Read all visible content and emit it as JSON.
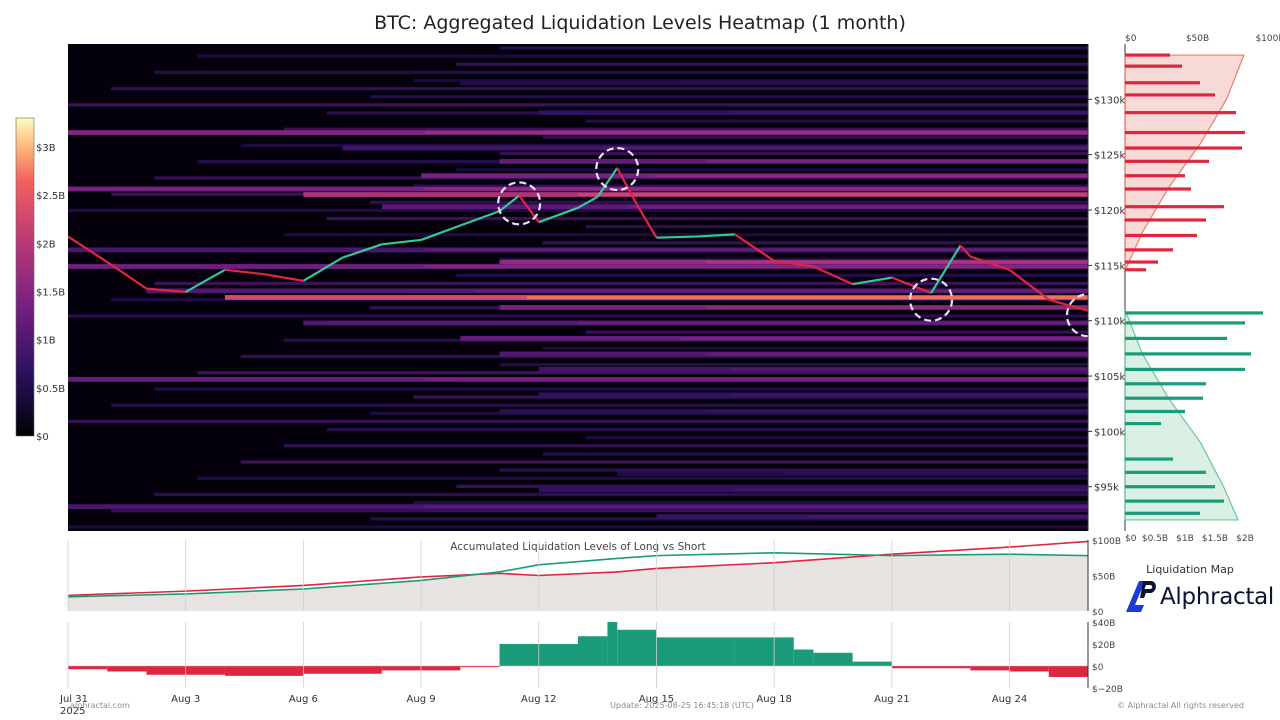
{
  "title": "BTC: Aggregated Liquidation Levels Heatmap (1 month)",
  "colors": {
    "long": "#1a9c7a",
    "short": "#e0253f",
    "cum_bg": "#e6e3e0",
    "heatmap_low": "#000004",
    "heatmap_high": "#fcfdbf"
  },
  "chart_data": [
    {
      "type": "heatmap",
      "name": "liquidation-heatmap",
      "x_dates": [
        "Jul 31\n2025",
        "Aug 3",
        "Aug 6",
        "Aug 9",
        "Aug 12",
        "Aug 15",
        "Aug 18",
        "Aug 21",
        "Aug 24"
      ],
      "x_tick_labels": [
        "Jul 31",
        "Aug 3",
        "Aug 6",
        "Aug 9",
        "Aug 12",
        "Aug 15",
        "Aug 18",
        "Aug 21",
        "Aug 24"
      ],
      "x_year_label": "2025",
      "xlim": [
        "2025-07-31",
        "2025-08-26"
      ],
      "y_ticks": [
        95000,
        100000,
        105000,
        110000,
        115000,
        120000,
        125000,
        130000
      ],
      "y_tick_labels": [
        "$95k",
        "$100k",
        "$105k",
        "$110k",
        "$115k",
        "$120k",
        "$125k",
        "$130k"
      ],
      "ylim": [
        91000,
        135000
      ],
      "colorbar": {
        "ticks": [
          "$0",
          "$0.5B",
          "$1B",
          "$1.5B",
          "$2B",
          "$2.5B",
          "$3B"
        ],
        "values": [
          0,
          0.5,
          1,
          1.5,
          2,
          2.5,
          3
        ],
        "max": 3.3
      },
      "price_series": [
        {
          "date": "2025-07-31",
          "price": 117600
        },
        {
          "date": "2025-08-01",
          "price": 115300
        },
        {
          "date": "2025-08-02",
          "price": 112900
        },
        {
          "date": "2025-08-03",
          "price": 112600
        },
        {
          "date": "2025-08-04",
          "price": 114600
        },
        {
          "date": "2025-08-05",
          "price": 114200
        },
        {
          "date": "2025-08-06",
          "price": 113600
        },
        {
          "date": "2025-08-07",
          "price": 115700
        },
        {
          "date": "2025-08-08",
          "price": 116900
        },
        {
          "date": "2025-08-09",
          "price": 117300
        },
        {
          "date": "2025-08-10",
          "price": 118600
        },
        {
          "date": "2025-08-11",
          "price": 119900
        },
        {
          "date": "2025-08-11T12",
          "price": 121300
        },
        {
          "date": "2025-08-12",
          "price": 118900
        },
        {
          "date": "2025-08-13",
          "price": 120200
        },
        {
          "date": "2025-08-13T12",
          "price": 121200
        },
        {
          "date": "2025-08-14",
          "price": 123800
        },
        {
          "date": "2025-08-14T12",
          "price": 120500
        },
        {
          "date": "2025-08-15",
          "price": 117500
        },
        {
          "date": "2025-08-16",
          "price": 117600
        },
        {
          "date": "2025-08-17",
          "price": 117800
        },
        {
          "date": "2025-08-18",
          "price": 115400
        },
        {
          "date": "2025-08-19",
          "price": 114900
        },
        {
          "date": "2025-08-20",
          "price": 113300
        },
        {
          "date": "2025-08-21",
          "price": 113900
        },
        {
          "date": "2025-08-22",
          "price": 112500
        },
        {
          "date": "2025-08-22T18",
          "price": 116800
        },
        {
          "date": "2025-08-23",
          "price": 115800
        },
        {
          "date": "2025-08-24",
          "price": 114600
        },
        {
          "date": "2025-08-25",
          "price": 111900
        },
        {
          "date": "2025-08-26",
          "price": 110900
        }
      ],
      "highlight_circles": [
        {
          "date": "2025-08-11T12",
          "price": 120600
        },
        {
          "date": "2025-08-14",
          "price": 123700
        },
        {
          "date": "2025-08-22",
          "price": 111900
        },
        {
          "date": "2025-08-26",
          "price": 110500
        }
      ],
      "bands": [
        {
          "price": 131500,
          "start": "2025-08-10",
          "value": 0.6
        },
        {
          "price": 128800,
          "start": "2025-08-12",
          "value": 0.8
        },
        {
          "price": 127000,
          "start": "2025-07-31",
          "value": 1.7
        },
        {
          "price": 125600,
          "start": "2025-08-07",
          "value": 1.0
        },
        {
          "price": 124400,
          "start": "2025-08-11",
          "value": 1.4
        },
        {
          "price": 123100,
          "start": "2025-08-09",
          "value": 1.6
        },
        {
          "price": 121900,
          "start": "2025-07-31",
          "value": 1.6
        },
        {
          "price": 121400,
          "start": "2025-08-06",
          "value": 2.2
        },
        {
          "price": 120300,
          "start": "2025-08-08",
          "value": 1.3
        },
        {
          "price": 116400,
          "start": "2025-07-31",
          "value": 1.1
        },
        {
          "price": 115300,
          "start": "2025-08-11",
          "value": 1.9
        },
        {
          "price": 114900,
          "start": "2025-07-31",
          "value": 1.5
        },
        {
          "price": 112700,
          "start": "2025-08-02",
          "value": 1.2
        },
        {
          "price": 112100,
          "start": "2025-08-04",
          "value": 2.7
        },
        {
          "price": 111200,
          "start": "2025-08-11",
          "value": 1.6
        },
        {
          "price": 109800,
          "start": "2025-08-06",
          "value": 1.2
        },
        {
          "price": 108400,
          "start": "2025-08-10",
          "value": 1.4
        },
        {
          "price": 107000,
          "start": "2025-08-11",
          "value": 1.2
        },
        {
          "price": 105600,
          "start": "2025-08-12",
          "value": 1.0
        },
        {
          "price": 104700,
          "start": "2025-07-31",
          "value": 1.4
        },
        {
          "price": 103300,
          "start": "2025-08-12",
          "value": 0.8
        },
        {
          "price": 101800,
          "start": "2025-08-11",
          "value": 0.7
        },
        {
          "price": 96200,
          "start": "2025-08-14",
          "value": 0.6
        },
        {
          "price": 94700,
          "start": "2025-08-12",
          "value": 0.8
        },
        {
          "price": 93200,
          "start": "2025-07-31",
          "value": 1.1
        },
        {
          "price": 92300,
          "start": "2025-08-15",
          "value": 0.9
        }
      ]
    },
    {
      "type": "bar",
      "name": "liquidation-map",
      "orientation": "horizontal",
      "top_axis_ticks": [
        "$0",
        "$50B",
        "$100B"
      ],
      "bottom_axis_ticks": [
        "$0",
        "$0.5B",
        "$1B",
        "$1.5B",
        "$2B"
      ],
      "label": "Liquidation Map",
      "short_bars": [
        {
          "price": 134000,
          "value": 0.75
        },
        {
          "price": 133000,
          "value": 0.95
        },
        {
          "price": 131500,
          "value": 1.25
        },
        {
          "price": 130400,
          "value": 1.5
        },
        {
          "price": 128800,
          "value": 1.85
        },
        {
          "price": 127000,
          "value": 2.0
        },
        {
          "price": 125600,
          "value": 1.95
        },
        {
          "price": 124400,
          "value": 1.4
        },
        {
          "price": 123100,
          "value": 1.0
        },
        {
          "price": 121900,
          "value": 1.1
        },
        {
          "price": 120300,
          "value": 1.65
        },
        {
          "price": 119100,
          "value": 1.35
        },
        {
          "price": 117700,
          "value": 1.2
        },
        {
          "price": 116400,
          "value": 0.8
        },
        {
          "price": 115300,
          "value": 0.55
        },
        {
          "price": 114600,
          "value": 0.35
        }
      ],
      "long_bars": [
        {
          "price": 110700,
          "value": 2.3
        },
        {
          "price": 109800,
          "value": 2.0
        },
        {
          "price": 108400,
          "value": 1.7
        },
        {
          "price": 107000,
          "value": 2.1
        },
        {
          "price": 105600,
          "value": 2.0
        },
        {
          "price": 104300,
          "value": 1.35
        },
        {
          "price": 103000,
          "value": 1.3
        },
        {
          "price": 101800,
          "value": 1.0
        },
        {
          "price": 100700,
          "value": 0.6
        },
        {
          "price": 97500,
          "value": 0.8
        },
        {
          "price": 96300,
          "value": 1.35
        },
        {
          "price": 95000,
          "value": 1.5
        },
        {
          "price": 93700,
          "value": 1.65
        },
        {
          "price": 92600,
          "value": 1.25
        }
      ],
      "short_cumulative": [
        {
          "price": 114500,
          "value": 0
        },
        {
          "price": 118000,
          "value": 12
        },
        {
          "price": 122000,
          "value": 30
        },
        {
          "price": 126000,
          "value": 52
        },
        {
          "price": 130000,
          "value": 70
        },
        {
          "price": 134000,
          "value": 82
        }
      ],
      "long_cumulative": [
        {
          "price": 111000,
          "value": 0
        },
        {
          "price": 107000,
          "value": 12
        },
        {
          "price": 103000,
          "value": 30
        },
        {
          "price": 99000,
          "value": 52
        },
        {
          "price": 95000,
          "value": 68
        },
        {
          "price": 92000,
          "value": 78
        }
      ]
    },
    {
      "type": "line",
      "name": "accumulated-long-vs-short",
      "title": "Accumulated Liquidation Levels of Long vs Short",
      "y_tick_labels": [
        "$100B",
        "$50B",
        "$0"
      ],
      "ylim": [
        0,
        100
      ],
      "series": [
        {
          "role": "short",
          "values": [
            {
              "date": "2025-07-31",
              "value": 22
            },
            {
              "date": "2025-08-03",
              "value": 28
            },
            {
              "date": "2025-08-06",
              "value": 36
            },
            {
              "date": "2025-08-09",
              "value": 48
            },
            {
              "date": "2025-08-11",
              "value": 53
            },
            {
              "date": "2025-08-12",
              "value": 50
            },
            {
              "date": "2025-08-14",
              "value": 55
            },
            {
              "date": "2025-08-15",
              "value": 60
            },
            {
              "date": "2025-08-18",
              "value": 68
            },
            {
              "date": "2025-08-21",
              "value": 80
            },
            {
              "date": "2025-08-24",
              "value": 90
            },
            {
              "date": "2025-08-26",
              "value": 98
            }
          ]
        },
        {
          "role": "long",
          "values": [
            {
              "date": "2025-07-31",
              "value": 20
            },
            {
              "date": "2025-08-03",
              "value": 24
            },
            {
              "date": "2025-08-06",
              "value": 31
            },
            {
              "date": "2025-08-09",
              "value": 43
            },
            {
              "date": "2025-08-11",
              "value": 55
            },
            {
              "date": "2025-08-12",
              "value": 65
            },
            {
              "date": "2025-08-14",
              "value": 74
            },
            {
              "date": "2025-08-15",
              "value": 78
            },
            {
              "date": "2025-08-18",
              "value": 82
            },
            {
              "date": "2025-08-21",
              "value": 78
            },
            {
              "date": "2025-08-24",
              "value": 80
            },
            {
              "date": "2025-08-26",
              "value": 78
            }
          ]
        }
      ]
    },
    {
      "type": "area",
      "name": "long-minus-short-difference",
      "y_tick_labels": [
        "$40B",
        "$20B",
        "$0",
        "$−20B"
      ],
      "ylim": [
        -20,
        40
      ],
      "values": [
        {
          "date": "2025-07-31",
          "value": -3
        },
        {
          "date": "2025-08-01",
          "value": -5
        },
        {
          "date": "2025-08-02",
          "value": -8
        },
        {
          "date": "2025-08-04",
          "value": -9
        },
        {
          "date": "2025-08-06",
          "value": -7
        },
        {
          "date": "2025-08-08",
          "value": -4
        },
        {
          "date": "2025-08-10",
          "value": -1
        },
        {
          "date": "2025-08-11",
          "value": 20
        },
        {
          "date": "2025-08-12",
          "value": 20
        },
        {
          "date": "2025-08-13",
          "value": 27
        },
        {
          "date": "2025-08-13T18",
          "value": 40
        },
        {
          "date": "2025-08-14",
          "value": 33
        },
        {
          "date": "2025-08-15",
          "value": 26
        },
        {
          "date": "2025-08-17",
          "value": 26
        },
        {
          "date": "2025-08-18",
          "value": 26
        },
        {
          "date": "2025-08-18T12",
          "value": 15
        },
        {
          "date": "2025-08-19",
          "value": 12
        },
        {
          "date": "2025-08-20",
          "value": 4
        },
        {
          "date": "2025-08-21",
          "value": -2
        },
        {
          "date": "2025-08-22",
          "value": -2
        },
        {
          "date": "2025-08-23",
          "value": -4
        },
        {
          "date": "2025-08-24",
          "value": -5
        },
        {
          "date": "2025-08-25",
          "value": -10
        },
        {
          "date": "2025-08-26",
          "value": -20
        }
      ]
    }
  ],
  "brand": {
    "name": "Alphractal",
    "map_label": "Liquidation Map"
  },
  "footer": {
    "left": "alphractal.com",
    "center": "Update: 2025-08-25 16:45:18 (UTC)",
    "right": "© Alphractal All rights reserved"
  }
}
